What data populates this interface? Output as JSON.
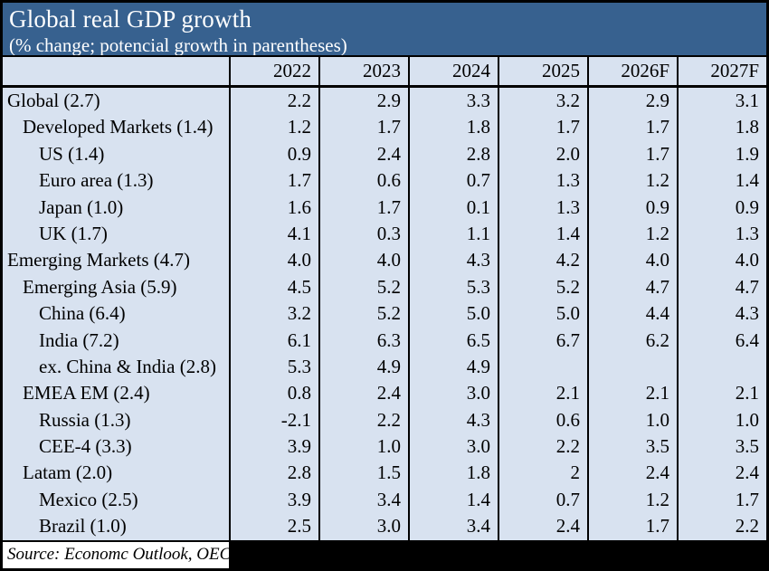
{
  "chart_data": {
    "type": "table",
    "title": "Global real GDP growth",
    "subtitle": "(% change; potencial growth in parentheses)",
    "columns": [
      "2022",
      "2023",
      "2024",
      "2025",
      "2026F",
      "2027F"
    ],
    "rows": [
      {
        "label": "Global (2.7)",
        "indent": 0,
        "values": [
          "2.2",
          "2.9",
          "3.3",
          "3.2",
          "2.9",
          "3.1"
        ]
      },
      {
        "label": "Developed Markets (1.4)",
        "indent": 1,
        "values": [
          "1.2",
          "1.7",
          "1.8",
          "1.7",
          "1.7",
          "1.8"
        ]
      },
      {
        "label": "US (1.4)",
        "indent": 2,
        "values": [
          "0.9",
          "2.4",
          "2.8",
          "2.0",
          "1.7",
          "1.9"
        ]
      },
      {
        "label": "Euro area (1.3)",
        "indent": 2,
        "values": [
          "1.7",
          "0.6",
          "0.7",
          "1.3",
          "1.2",
          "1.4"
        ]
      },
      {
        "label": "Japan (1.0)",
        "indent": 2,
        "values": [
          "1.6",
          "1.7",
          "0.1",
          "1.3",
          "0.9",
          "0.9"
        ]
      },
      {
        "label": "UK (1.7)",
        "indent": 2,
        "values": [
          "4.1",
          "0.3",
          "1.1",
          "1.4",
          "1.2",
          "1.3"
        ]
      },
      {
        "label": "Emerging Markets (4.7)",
        "indent": 0,
        "values": [
          "4.0",
          "4.0",
          "4.3",
          "4.2",
          "4.0",
          "4.0"
        ]
      },
      {
        "label": "Emerging Asia (5.9)",
        "indent": 1,
        "values": [
          "4.5",
          "5.2",
          "5.3",
          "5.2",
          "4.7",
          "4.7"
        ]
      },
      {
        "label": "China (6.4)",
        "indent": 2,
        "values": [
          "3.2",
          "5.2",
          "5.0",
          "5.0",
          "4.4",
          "4.3"
        ]
      },
      {
        "label": "India (7.2)",
        "indent": 2,
        "values": [
          "6.1",
          "6.3",
          "6.5",
          "6.7",
          "6.2",
          "6.4"
        ]
      },
      {
        "label": "ex. China & India (2.8)",
        "indent": 2,
        "values": [
          "5.3",
          "4.9",
          "4.9",
          "",
          "",
          ""
        ]
      },
      {
        "label": "EMEA EM (2.4)",
        "indent": 1,
        "values": [
          "0.8",
          "2.4",
          "3.0",
          "2.1",
          "2.1",
          "2.1"
        ]
      },
      {
        "label": "Russia (1.3)",
        "indent": 2,
        "values": [
          "-2.1",
          "2.2",
          "4.3",
          "0.6",
          "1.0",
          "1.0"
        ]
      },
      {
        "label": "CEE-4 (3.3)",
        "indent": 2,
        "values": [
          "3.9",
          "1.0",
          "3.0",
          "2.2",
          "3.5",
          "3.5"
        ]
      },
      {
        "label": "Latam (2.0)",
        "indent": 1,
        "values": [
          "2.8",
          "1.5",
          "1.8",
          "2",
          "2.4",
          "2.4"
        ]
      },
      {
        "label": "Mexico (2.5)",
        "indent": 2,
        "values": [
          "3.9",
          "3.4",
          "1.4",
          "0.7",
          "1.2",
          "1.7"
        ]
      },
      {
        "label": "Brazil (1.0)",
        "indent": 2,
        "values": [
          "2.5",
          "3.0",
          "3.4",
          "2.4",
          "1.7",
          "2.2"
        ]
      }
    ],
    "source": "Source:  Economc Outlook, OEC",
    "layout": {
      "grid": "vertical-lines-only",
      "legend": "none"
    }
  },
  "colors": {
    "banner_bg": "#37618F",
    "banner_text": "#FFFFFF",
    "cell_bg": "#D8E2F0",
    "gridline": "#000000",
    "source_bg": "#FFFFFF",
    "redaction": "#000000"
  }
}
